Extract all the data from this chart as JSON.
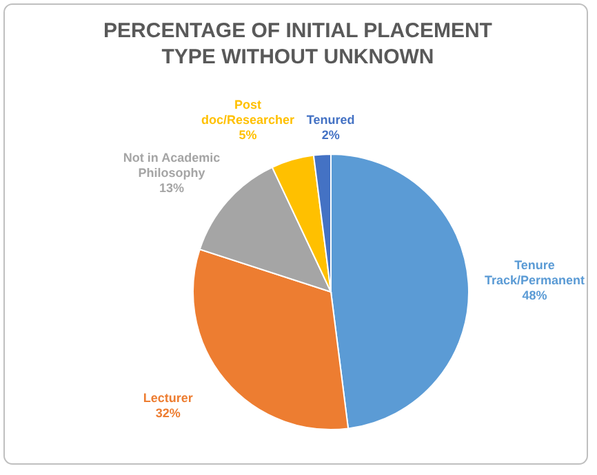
{
  "chart_data": {
    "type": "pie",
    "title": "PERCENTAGE OF INITIAL PLACEMENT TYPE WITHOUT UNKNOWN",
    "categories": [
      "Tenure Track/Permanent",
      "Lecturer",
      "Not in Academic Philosophy",
      "Post doc/Researcher",
      "Tenured"
    ],
    "values": [
      48,
      32,
      13,
      5,
      2
    ],
    "value_labels": [
      "48%",
      "32%",
      "13%",
      "5%",
      "2%"
    ],
    "colors": [
      "#5b9bd5",
      "#ed7d31",
      "#a5a5a5",
      "#ffc000",
      "#4472c4"
    ]
  }
}
